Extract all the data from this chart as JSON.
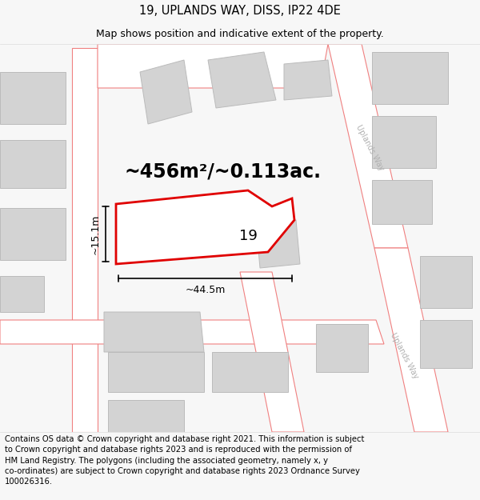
{
  "title": "19, UPLANDS WAY, DISS, IP22 4DE",
  "subtitle": "Map shows position and indicative extent of the property.",
  "footer": "Contains OS data © Crown copyright and database right 2021. This information is subject\nto Crown copyright and database rights 2023 and is reproduced with the permission of\nHM Land Registry. The polygons (including the associated geometry, namely x, y\nco-ordinates) are subject to Crown copyright and database rights 2023 Ordnance Survey\n100026316.",
  "bg_color": "#f7f7f7",
  "map_bg": "#ffffff",
  "road_color": "#f08080",
  "road_fill": "#ffffff",
  "building_fill": "#d3d3d3",
  "building_edge": "#bbbbbb",
  "highlight_color": "#e00000",
  "highlight_fill": "#ffffff",
  "area_text": "~456m²/~0.113ac.",
  "label_number": "19",
  "dim_width": "~44.5m",
  "dim_height": "~15.1m",
  "title_fontsize": 10.5,
  "subtitle_fontsize": 9,
  "footer_fontsize": 7.2,
  "area_fontsize": 17,
  "label_fontsize": 13,
  "dim_fontsize": 9,
  "road_label": "Uplands Way",
  "road_label2": "Uplands Way"
}
